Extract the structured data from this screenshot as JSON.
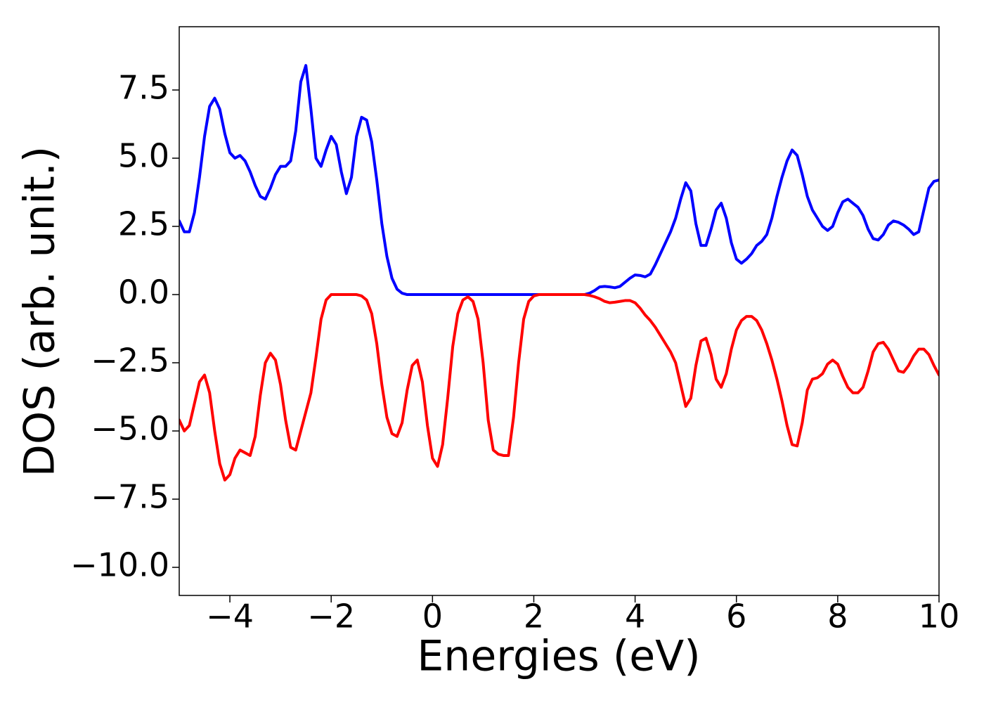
{
  "chart_data": {
    "type": "line",
    "xlabel": "Energies (eV)",
    "ylabel": "DOS (arb. unit.)",
    "x": [
      -5.0,
      -4.9,
      -4.8,
      -4.7,
      -4.6,
      -4.5,
      -4.4,
      -4.3,
      -4.2,
      -4.1,
      -4.0,
      -3.9,
      -3.8,
      -3.7,
      -3.6,
      -3.5,
      -3.4,
      -3.3,
      -3.2,
      -3.1,
      -3.0,
      -2.9,
      -2.8,
      -2.7,
      -2.6,
      -2.5,
      -2.4,
      -2.3,
      -2.2,
      -2.1,
      -2.0,
      -1.9,
      -1.8,
      -1.7,
      -1.6,
      -1.5,
      -1.4,
      -1.3,
      -1.2,
      -1.1,
      -1.0,
      -0.9,
      -0.8,
      -0.7,
      -0.6,
      -0.5,
      -0.4,
      -0.3,
      -0.2,
      -0.1,
      0.0,
      0.1,
      0.2,
      0.3,
      0.4,
      0.5,
      0.6,
      0.7,
      0.8,
      0.9,
      1.0,
      1.1,
      1.2,
      1.3,
      1.4,
      1.5,
      1.6,
      1.7,
      1.8,
      1.9,
      2.0,
      2.1,
      2.2,
      2.3,
      2.4,
      2.5,
      2.6,
      2.7,
      2.8,
      2.9,
      3.0,
      3.1,
      3.2,
      3.3,
      3.4,
      3.5,
      3.6,
      3.7,
      3.8,
      3.9,
      4.0,
      4.1,
      4.2,
      4.3,
      4.4,
      4.5,
      4.6,
      4.7,
      4.8,
      4.9,
      5.0,
      5.1,
      5.2,
      5.3,
      5.4,
      5.5,
      5.6,
      5.7,
      5.8,
      5.9,
      6.0,
      6.1,
      6.2,
      6.3,
      6.4,
      6.5,
      6.6,
      6.7,
      6.8,
      6.9,
      7.0,
      7.1,
      7.2,
      7.3,
      7.4,
      7.5,
      7.6,
      7.7,
      7.8,
      7.9,
      8.0,
      8.1,
      8.2,
      8.3,
      8.4,
      8.5,
      8.6,
      8.7,
      8.8,
      8.9,
      9.0,
      9.1,
      9.2,
      9.3,
      9.4,
      9.5,
      9.6,
      9.7,
      9.8,
      9.9,
      10.0
    ],
    "series": [
      {
        "color": "#0000ff",
        "values": [
          2.7,
          2.3,
          2.3,
          3.0,
          4.3,
          5.8,
          6.9,
          7.2,
          6.8,
          5.9,
          5.2,
          5.0,
          5.1,
          4.9,
          4.5,
          4.0,
          3.6,
          3.5,
          3.9,
          4.4,
          4.7,
          4.7,
          4.9,
          6.0,
          7.8,
          8.4,
          6.8,
          5.0,
          4.7,
          5.3,
          5.8,
          5.5,
          4.5,
          3.7,
          4.3,
          5.8,
          6.5,
          6.4,
          5.6,
          4.2,
          2.6,
          1.4,
          0.6,
          0.2,
          0.05,
          0,
          0,
          0,
          0,
          0,
          0,
          0,
          0,
          0,
          0,
          0,
          0,
          0,
          0,
          0,
          0,
          0,
          0,
          0,
          0,
          0,
          0,
          0,
          0,
          0,
          0,
          0,
          0,
          0,
          0,
          0,
          0,
          0,
          0,
          0,
          0,
          0.05,
          0.15,
          0.28,
          0.3,
          0.28,
          0.25,
          0.3,
          0.45,
          0.6,
          0.72,
          0.7,
          0.65,
          0.75,
          1.1,
          1.5,
          1.9,
          2.3,
          2.8,
          3.5,
          4.1,
          3.8,
          2.6,
          1.8,
          1.8,
          2.4,
          3.1,
          3.35,
          2.8,
          1.9,
          1.3,
          1.15,
          1.3,
          1.5,
          1.8,
          1.95,
          2.2,
          2.8,
          3.6,
          4.3,
          4.9,
          5.3,
          5.1,
          4.4,
          3.6,
          3.1,
          2.8,
          2.5,
          2.35,
          2.5,
          3.0,
          3.4,
          3.5,
          3.35,
          3.2,
          2.9,
          2.4,
          2.05,
          2.0,
          2.2,
          2.55,
          2.7,
          2.65,
          2.55,
          2.4,
          2.2,
          2.3,
          3.1,
          3.9,
          4.15,
          4.2
        ]
      },
      {
        "color": "#ff0000",
        "values": [
          -4.6,
          -5.0,
          -4.8,
          -4.0,
          -3.2,
          -2.95,
          -3.6,
          -5.0,
          -6.2,
          -6.8,
          -6.6,
          -6.0,
          -5.7,
          -5.8,
          -5.9,
          -5.2,
          -3.7,
          -2.5,
          -2.15,
          -2.4,
          -3.3,
          -4.6,
          -5.6,
          -5.7,
          -5.0,
          -4.3,
          -3.6,
          -2.3,
          -0.9,
          -0.2,
          0,
          0,
          0,
          0,
          0,
          0,
          -0.05,
          -0.2,
          -0.7,
          -1.8,
          -3.3,
          -4.5,
          -5.1,
          -5.2,
          -4.7,
          -3.5,
          -2.6,
          -2.4,
          -3.2,
          -4.8,
          -6.0,
          -6.3,
          -5.5,
          -3.8,
          -1.9,
          -0.7,
          -0.2,
          -0.08,
          -0.25,
          -0.9,
          -2.5,
          -4.6,
          -5.7,
          -5.85,
          -5.9,
          -5.9,
          -4.5,
          -2.5,
          -0.9,
          -0.25,
          -0.05,
          0,
          0,
          0,
          0,
          0,
          0,
          0,
          0,
          0,
          0,
          -0.03,
          -0.08,
          -0.15,
          -0.25,
          -0.3,
          -0.28,
          -0.25,
          -0.22,
          -0.22,
          -0.3,
          -0.5,
          -0.75,
          -0.95,
          -1.2,
          -1.5,
          -1.8,
          -2.1,
          -2.5,
          -3.3,
          -4.1,
          -3.8,
          -2.6,
          -1.7,
          -1.6,
          -2.2,
          -3.1,
          -3.4,
          -2.9,
          -2.0,
          -1.3,
          -0.95,
          -0.8,
          -0.8,
          -0.95,
          -1.3,
          -1.8,
          -2.4,
          -3.1,
          -3.9,
          -4.8,
          -5.5,
          -5.55,
          -4.7,
          -3.5,
          -3.1,
          -3.05,
          -2.9,
          -2.55,
          -2.4,
          -2.55,
          -3.0,
          -3.4,
          -3.6,
          -3.6,
          -3.4,
          -2.8,
          -2.1,
          -1.8,
          -1.75,
          -2.0,
          -2.4,
          -2.8,
          -2.85,
          -2.6,
          -2.25,
          -2.0,
          -2.0,
          -2.2,
          -2.6,
          -2.95
        ]
      }
    ],
    "xlim": [
      -5,
      10
    ],
    "xticks": [
      {
        "value": -4,
        "label": "−4"
      },
      {
        "value": -2,
        "label": "−2"
      },
      0,
      2,
      4,
      6,
      8,
      10
    ],
    "ylim": [
      -11.03,
      9.82
    ],
    "yticks": [
      {
        "value": -10,
        "label": "−10.0"
      },
      {
        "value": -7.5,
        "label": "−7.5"
      },
      {
        "value": -5,
        "label": "−5.0"
      },
      {
        "value": -2.5,
        "label": "−2.5"
      },
      {
        "value": 0,
        "label": "0.0"
      },
      2.5,
      {
        "value": 5,
        "label": "5.0"
      },
      7.5
    ],
    "grid": false
  }
}
